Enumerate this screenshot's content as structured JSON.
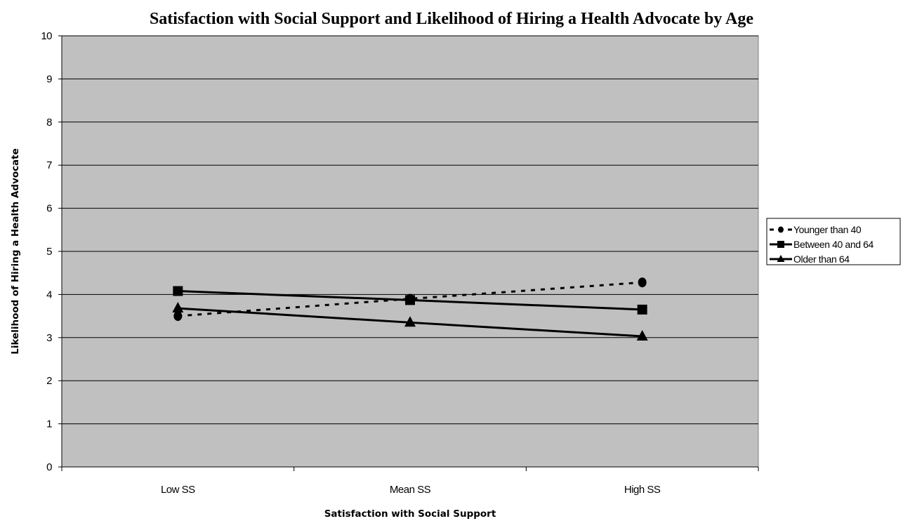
{
  "chart_data": {
    "type": "line",
    "title": "Satisfaction with Social Support and Likelihood of Hiring a Health Advocate by Age",
    "xlabel": "Satisfaction with Social Support",
    "ylabel": "Likelihood of Hiring a Health Advocate",
    "categories": [
      "Low SS",
      "Mean SS",
      "High SS"
    ],
    "ylim": [
      0,
      10
    ],
    "yticks": [
      0,
      1,
      2,
      3,
      4,
      5,
      6,
      7,
      8,
      9,
      10
    ],
    "ytick_labels": [
      "0",
      "1",
      "2",
      "3",
      "4",
      "5",
      "6",
      "7",
      "8",
      "9",
      "10"
    ],
    "grid": true,
    "plot_background": "#c0c0c0",
    "legend_position": "right",
    "series": [
      {
        "name": "Younger than 40",
        "values": [
          3.5,
          3.9,
          4.28
        ],
        "line_style": "dashed",
        "marker": "circle",
        "color": "#000000"
      },
      {
        "name": "Between 40 and 64",
        "values": [
          4.08,
          3.87,
          3.65
        ],
        "line_style": "solid",
        "marker": "square",
        "color": "#000000"
      },
      {
        "name": "Older than 64",
        "values": [
          3.68,
          3.35,
          3.03
        ],
        "line_style": "solid",
        "marker": "triangle",
        "color": "#000000"
      }
    ]
  }
}
